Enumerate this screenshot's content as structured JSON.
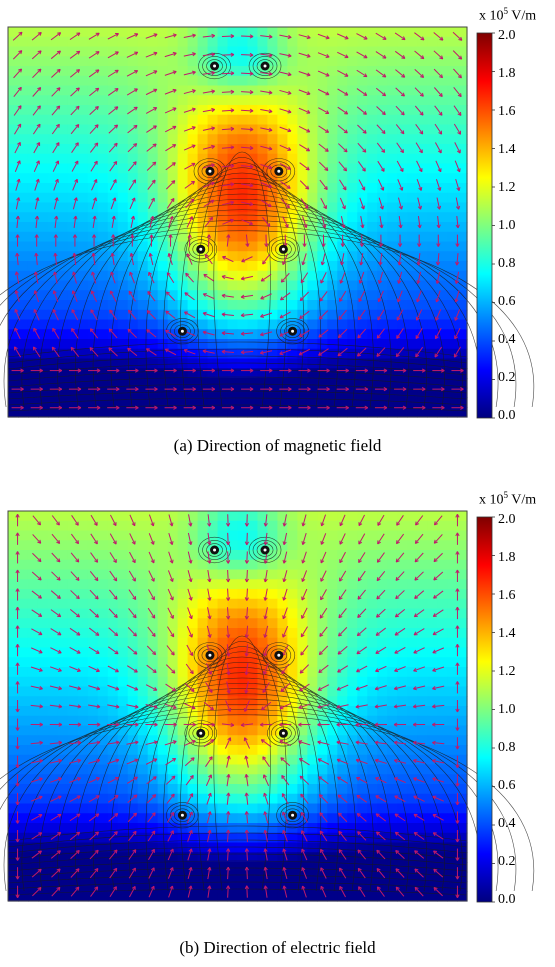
{
  "colorbar": {
    "unit_prefix": "x 10",
    "unit_exponent": "5",
    "unit_suffix": " V/m",
    "ticks": [
      "2.0",
      "1.8",
      "1.6",
      "1.4",
      "1.2",
      "1.0",
      "0.8",
      "0.6",
      "0.4",
      "0.2",
      "0.0"
    ],
    "colors": [
      "#00007f",
      "#0000ff",
      "#007fff",
      "#00ffff",
      "#7fff7f",
      "#ffff00",
      "#ff7f00",
      "#ff0000",
      "#7f0000"
    ]
  },
  "panels": [
    {
      "caption": "(a) Direction of magnetic field",
      "arrow_mode": "magnetic"
    },
    {
      "caption": "(b) Direction of electric field",
      "arrow_mode": "electric"
    }
  ],
  "colors": {
    "arrow": "#c01a6a",
    "streamline": "#1a1a1a"
  }
}
